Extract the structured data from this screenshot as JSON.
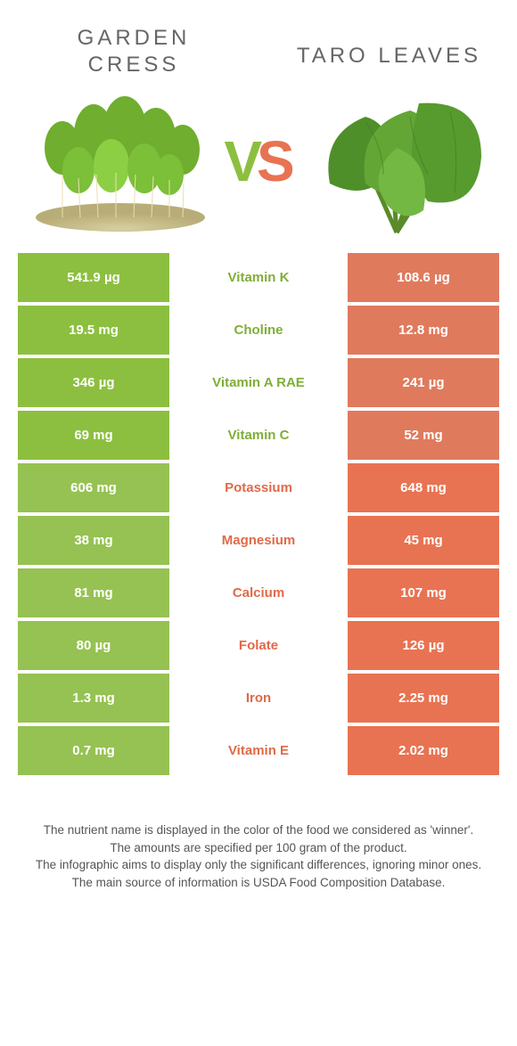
{
  "colors": {
    "green": "#8cbf3f",
    "orange": "#e87352",
    "label_green_text": "#7fae37",
    "label_orange_text": "#e06a49"
  },
  "left_food": "Garden\nCress",
  "right_food": "Taro Leaves",
  "vs": {
    "v": "V",
    "s": "S"
  },
  "rows": [
    {
      "left": "541.9 µg",
      "label": "Vitamin K",
      "right": "108.6 µg",
      "winner": "left"
    },
    {
      "left": "19.5 mg",
      "label": "Choline",
      "right": "12.8 mg",
      "winner": "left"
    },
    {
      "left": "346 µg",
      "label": "Vitamin A RAE",
      "right": "241 µg",
      "winner": "left"
    },
    {
      "left": "69 mg",
      "label": "Vitamin C",
      "right": "52 mg",
      "winner": "left"
    },
    {
      "left": "606 mg",
      "label": "Potassium",
      "right": "648 mg",
      "winner": "right"
    },
    {
      "left": "38 mg",
      "label": "Magnesium",
      "right": "45 mg",
      "winner": "right"
    },
    {
      "left": "81 mg",
      "label": "Calcium",
      "right": "107 mg",
      "winner": "right"
    },
    {
      "left": "80 µg",
      "label": "Folate",
      "right": "126 µg",
      "winner": "right"
    },
    {
      "left": "1.3 mg",
      "label": "Iron",
      "right": "2.25 mg",
      "winner": "right"
    },
    {
      "left": "0.7 mg",
      "label": "Vitamin E",
      "right": "2.02 mg",
      "winner": "right"
    }
  ],
  "footnotes": [
    "The nutrient name is displayed in the color of the food we considered as 'winner'.",
    "The amounts are specified per 100 gram of the product.",
    "The infographic aims to display only the significant differences, ignoring minor ones.",
    "The main source of information is USDA Food Composition Database."
  ]
}
